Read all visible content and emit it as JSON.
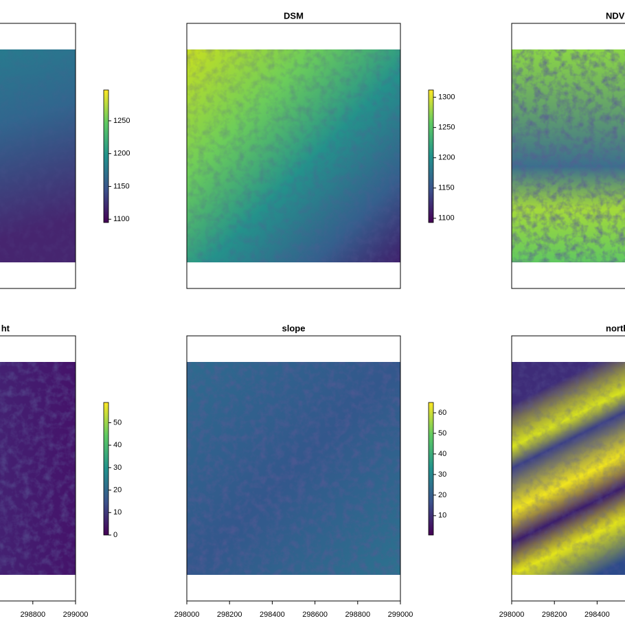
{
  "chart_data": [
    {
      "type": "raster",
      "zlim": [
        1095,
        1297
      ],
      "zticks": [
        1100,
        1150,
        1200,
        1250
      ]
    },
    {
      "type": "raster",
      "title": "DSM",
      "zlim": [
        1093,
        1312
      ],
      "zticks": [
        1100,
        1150,
        1200,
        1250,
        1300
      ]
    },
    {
      "type": "raster",
      "title": "NDV"
    },
    {
      "type": "raster",
      "title": "ht",
      "zlim": [
        0,
        59
      ],
      "zticks": [
        0,
        10,
        20,
        30,
        40,
        50
      ],
      "xlim": [
        298000,
        299000
      ],
      "xticks": [
        298800,
        299000
      ]
    },
    {
      "type": "raster",
      "title": "slope",
      "zlim": [
        0.6,
        65
      ],
      "zticks": [
        10,
        20,
        30,
        40,
        50,
        60
      ],
      "xlim": [
        298000,
        299000
      ],
      "xticks": [
        298000,
        298200,
        298400,
        298600,
        298800,
        299000
      ]
    },
    {
      "type": "raster",
      "title": "north",
      "xlim": [
        298000,
        299000
      ],
      "xticks": [
        298000,
        298200,
        298400
      ]
    }
  ]
}
